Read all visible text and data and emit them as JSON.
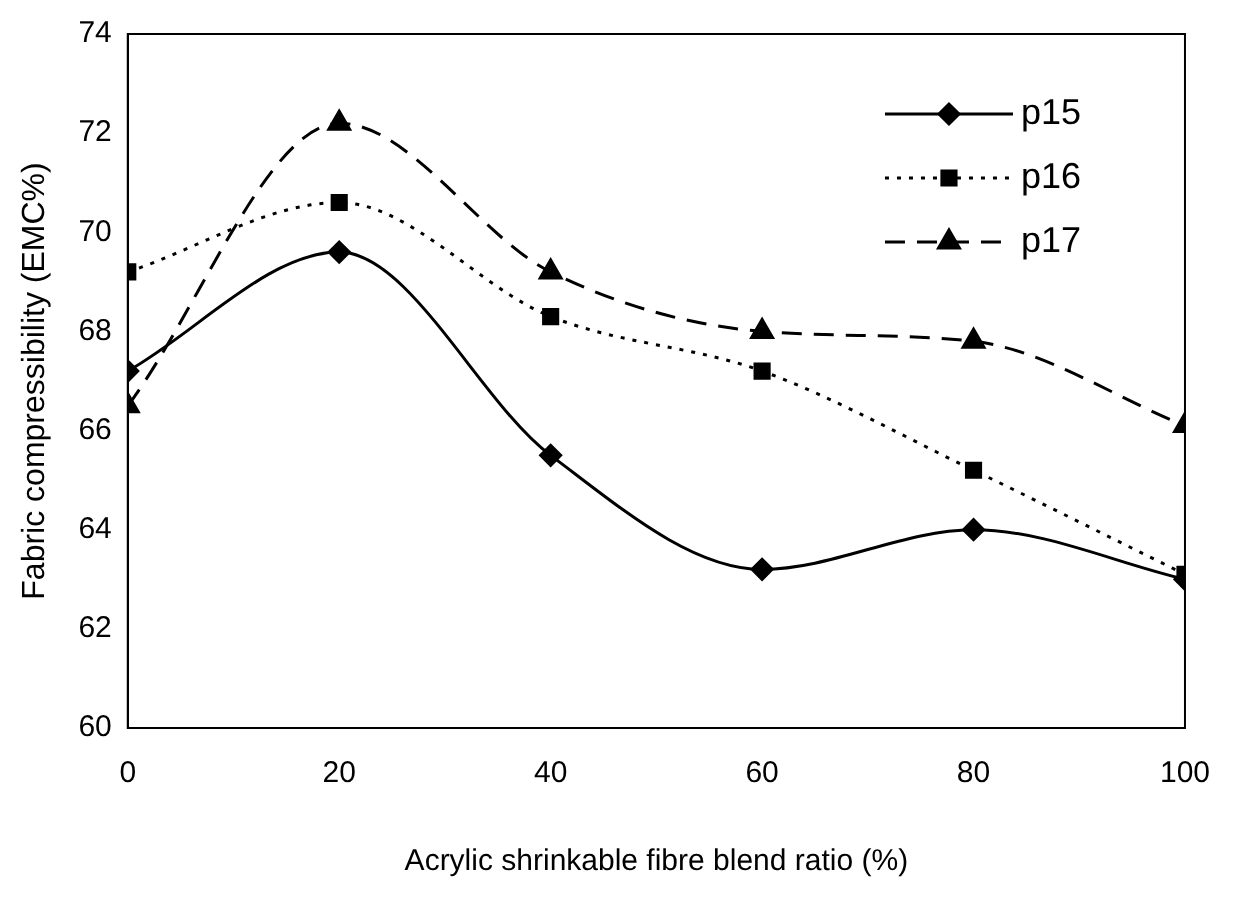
{
  "chart_data": {
    "type": "line",
    "xlabel": "Acrylic shrinkable fibre blend ratio (%)",
    "ylabel": "Fabric compressibility (EMC%)",
    "x": [
      0,
      20,
      40,
      60,
      80,
      100
    ],
    "series": [
      {
        "name": "p15",
        "color": "#000000",
        "marker": "diamond",
        "line_style": "solid",
        "values": [
          67.2,
          69.6,
          65.5,
          63.2,
          64.0,
          63.0
        ]
      },
      {
        "name": "p16",
        "color": "#000000",
        "marker": "square",
        "line_style": "dotted",
        "values": [
          69.2,
          70.6,
          68.3,
          67.2,
          65.2,
          63.1
        ]
      },
      {
        "name": "p17",
        "color": "#000000",
        "marker": "triangle",
        "line_style": "dashed",
        "values": [
          66.5,
          72.2,
          69.2,
          68.0,
          67.8,
          66.1
        ]
      }
    ],
    "xlim": [
      0,
      100
    ],
    "xticks": [
      0,
      20,
      40,
      60,
      80,
      100
    ],
    "ylim": [
      60,
      74
    ],
    "yticks": [
      60,
      62,
      64,
      66,
      68,
      70,
      72,
      74
    ],
    "grid": false,
    "legend": "top right"
  }
}
